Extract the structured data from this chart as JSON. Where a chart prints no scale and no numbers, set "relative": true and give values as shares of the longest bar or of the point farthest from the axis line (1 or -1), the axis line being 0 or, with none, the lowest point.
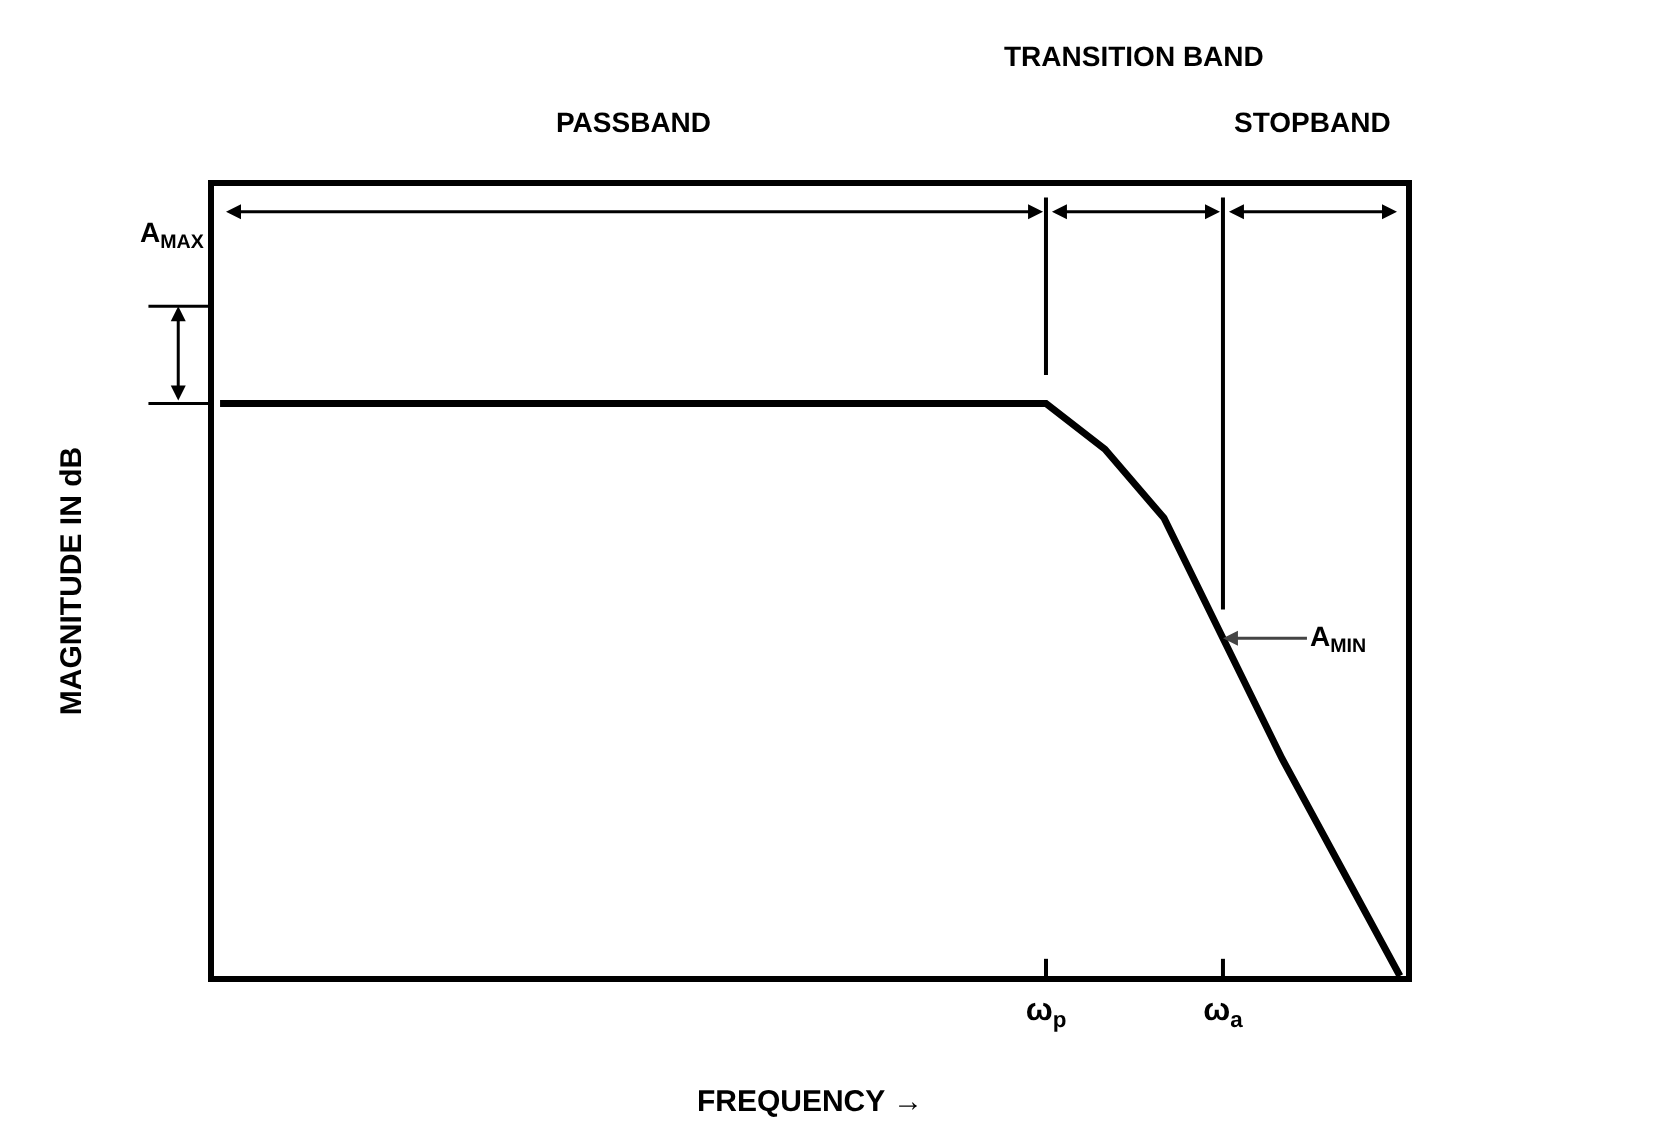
{
  "chart_data": {
    "type": "line",
    "relative": true,
    "xlabel": "FREQUENCY →",
    "ylabel": "MAGNITUDE IN dB",
    "categories": [
      null,
      null,
      null,
      null,
      null,
      null,
      null,
      null,
      null,
      null,
      null,
      null,
      null,
      null,
      "ω$_{p}$",
      null,
      null,
      "ω$_{a}$",
      null,
      null,
      null
    ],
    "series": [
      {
        "color": "#000000",
        "values": [
          1,
          1,
          1,
          1,
          1,
          1,
          1,
          1,
          1,
          1,
          1,
          1,
          1,
          1,
          1,
          0.92,
          0.8,
          0.59,
          0.38,
          0.19,
          0
        ]
      }
    ],
    "annotations": [
      "PASSBAND",
      "TRANSITION BAND",
      "STOPBAND",
      "A$_{MAX}$",
      "A$_{MIN}$"
    ]
  }
}
